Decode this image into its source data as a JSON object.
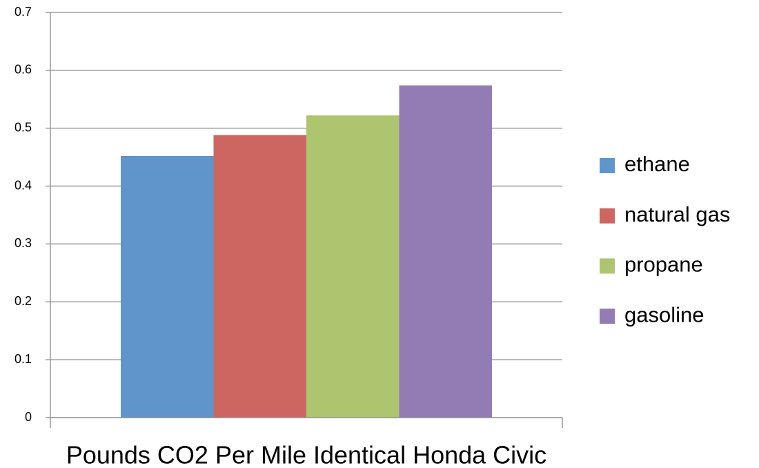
{
  "chart_data": {
    "type": "bar",
    "categories": [
      "Pounds CO2 Per Mile Identical Honda Civic"
    ],
    "series": [
      {
        "name": "ethane",
        "color": "#5f95ca",
        "values": [
          0.452
        ]
      },
      {
        "name": "natural gas",
        "color": "#cd6660",
        "values": [
          0.488
        ]
      },
      {
        "name": "propane",
        "color": "#adc56f",
        "values": [
          0.522
        ]
      },
      {
        "name": "gasoline",
        "color": "#937cb3",
        "values": [
          0.574
        ]
      }
    ],
    "ylim": [
      0,
      0.7
    ],
    "yticks": [
      0,
      0.1,
      0.2,
      0.3,
      0.4,
      0.5,
      0.6,
      0.7
    ],
    "grid": true,
    "legend": "right"
  }
}
